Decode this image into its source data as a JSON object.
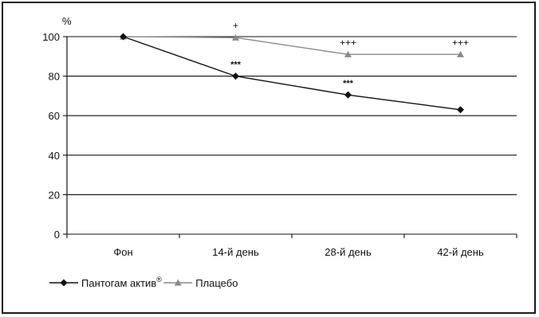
{
  "chart_data": {
    "type": "line",
    "ylabel": "%",
    "ylim": [
      0,
      100
    ],
    "yticks": [
      0,
      20,
      40,
      60,
      80,
      100
    ],
    "grid": true,
    "legend_position": "bottom-left",
    "categories": [
      "Фон",
      "14-й день",
      "28-й день",
      "42-й день"
    ],
    "series": [
      {
        "name": "Пантогам актив",
        "name_superscript": "®",
        "values": [
          100,
          80,
          70.5,
          63
        ],
        "color": "#111111",
        "marker": "diamond",
        "annotations": [
          "",
          "***",
          "***",
          ""
        ]
      },
      {
        "name": "Плацебо",
        "values": [
          100,
          99.5,
          91,
          91
        ],
        "color": "#8a8a8a",
        "marker": "triangle",
        "annotations": [
          "",
          "+",
          "+++",
          "+++"
        ]
      }
    ]
  }
}
